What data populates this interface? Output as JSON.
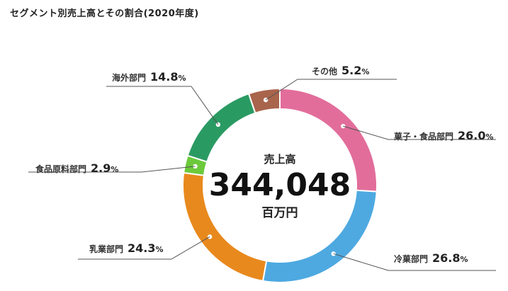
{
  "title": "セグメント別売上高とその割合(2020年度)",
  "center": {
    "label": "売上高",
    "value": "344,048",
    "unit": "百万円"
  },
  "chart_data": {
    "type": "pie",
    "title": "セグメント別売上高とその割合(2020年度)",
    "unit": "%",
    "slices": [
      {
        "name": "菓子・食品部門",
        "value": 26.0,
        "value_text": "26.0",
        "color": "#e26d9b"
      },
      {
        "name": "冷菓部門",
        "value": 26.8,
        "value_text": "26.8",
        "color": "#4ea9e1"
      },
      {
        "name": "乳業部門",
        "value": 24.3,
        "value_text": "24.3",
        "color": "#e8891d"
      },
      {
        "name": "食品原料部門",
        "value": 2.9,
        "value_text": "2.9",
        "color": "#6cc93c"
      },
      {
        "name": "海外部門",
        "value": 14.8,
        "value_text": "14.8",
        "color": "#2a9a63"
      },
      {
        "name": "その他",
        "value": 5.2,
        "value_text": "5.2",
        "color": "#a9644c"
      }
    ]
  }
}
